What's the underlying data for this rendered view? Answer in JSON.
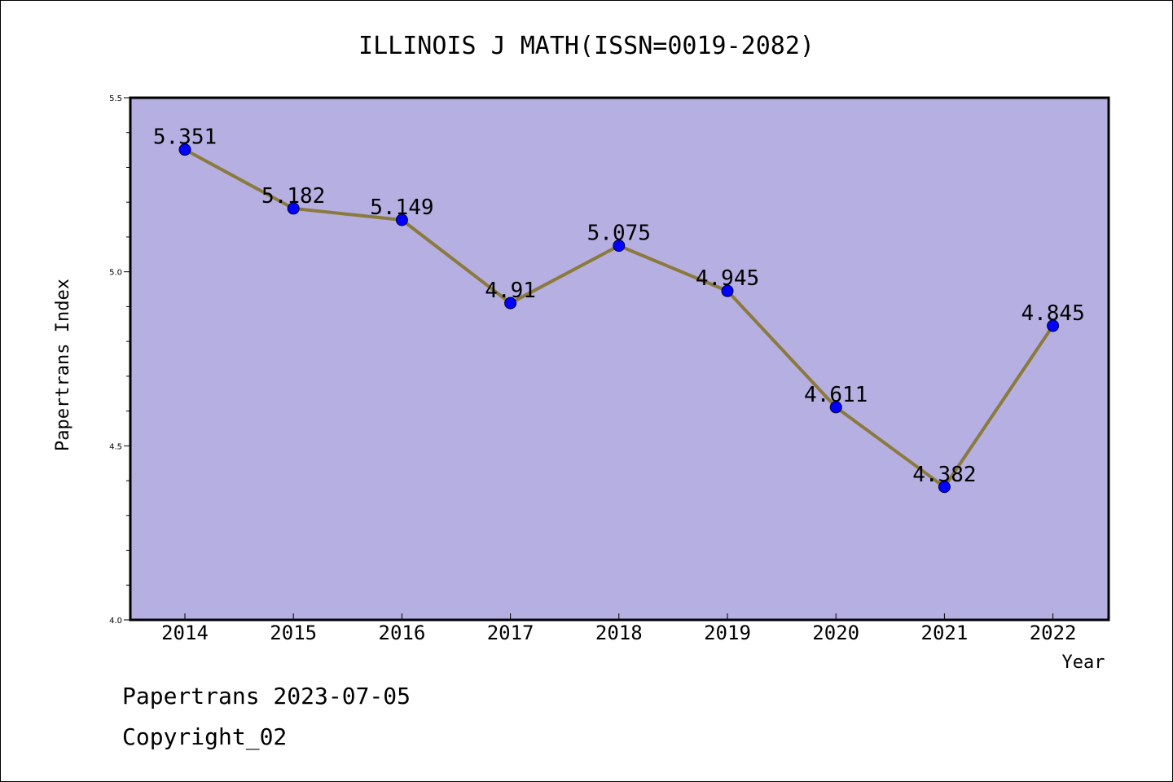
{
  "chart_data": {
    "type": "line",
    "title": "ILLINOIS J MATH(ISSN=0019-2082)",
    "xlabel": "Year",
    "ylabel": "Papertrans Index",
    "categories": [
      "2014",
      "2015",
      "2016",
      "2017",
      "2018",
      "2019",
      "2020",
      "2021",
      "2022"
    ],
    "series": [
      {
        "values": [
          5.351,
          5.182,
          5.149,
          4.91,
          5.075,
          4.945,
          4.611,
          4.382,
          4.845
        ],
        "labels": [
          "5.351",
          "5.182",
          "5.149",
          "4.91",
          "5.075",
          "4.945",
          "4.611",
          "4.382",
          "4.845"
        ]
      }
    ],
    "ylim": [
      4.0,
      5.5
    ],
    "yticks": [
      "4.0",
      "4.5",
      "5.0",
      "5.5"
    ],
    "grid": false,
    "colors": {
      "plot_background": "#b5afe2",
      "line": "#8b7a3c",
      "marker": "#0000ff"
    }
  },
  "footer": {
    "line1": "Papertrans 2023-07-05",
    "line2": "Copyright_02"
  }
}
